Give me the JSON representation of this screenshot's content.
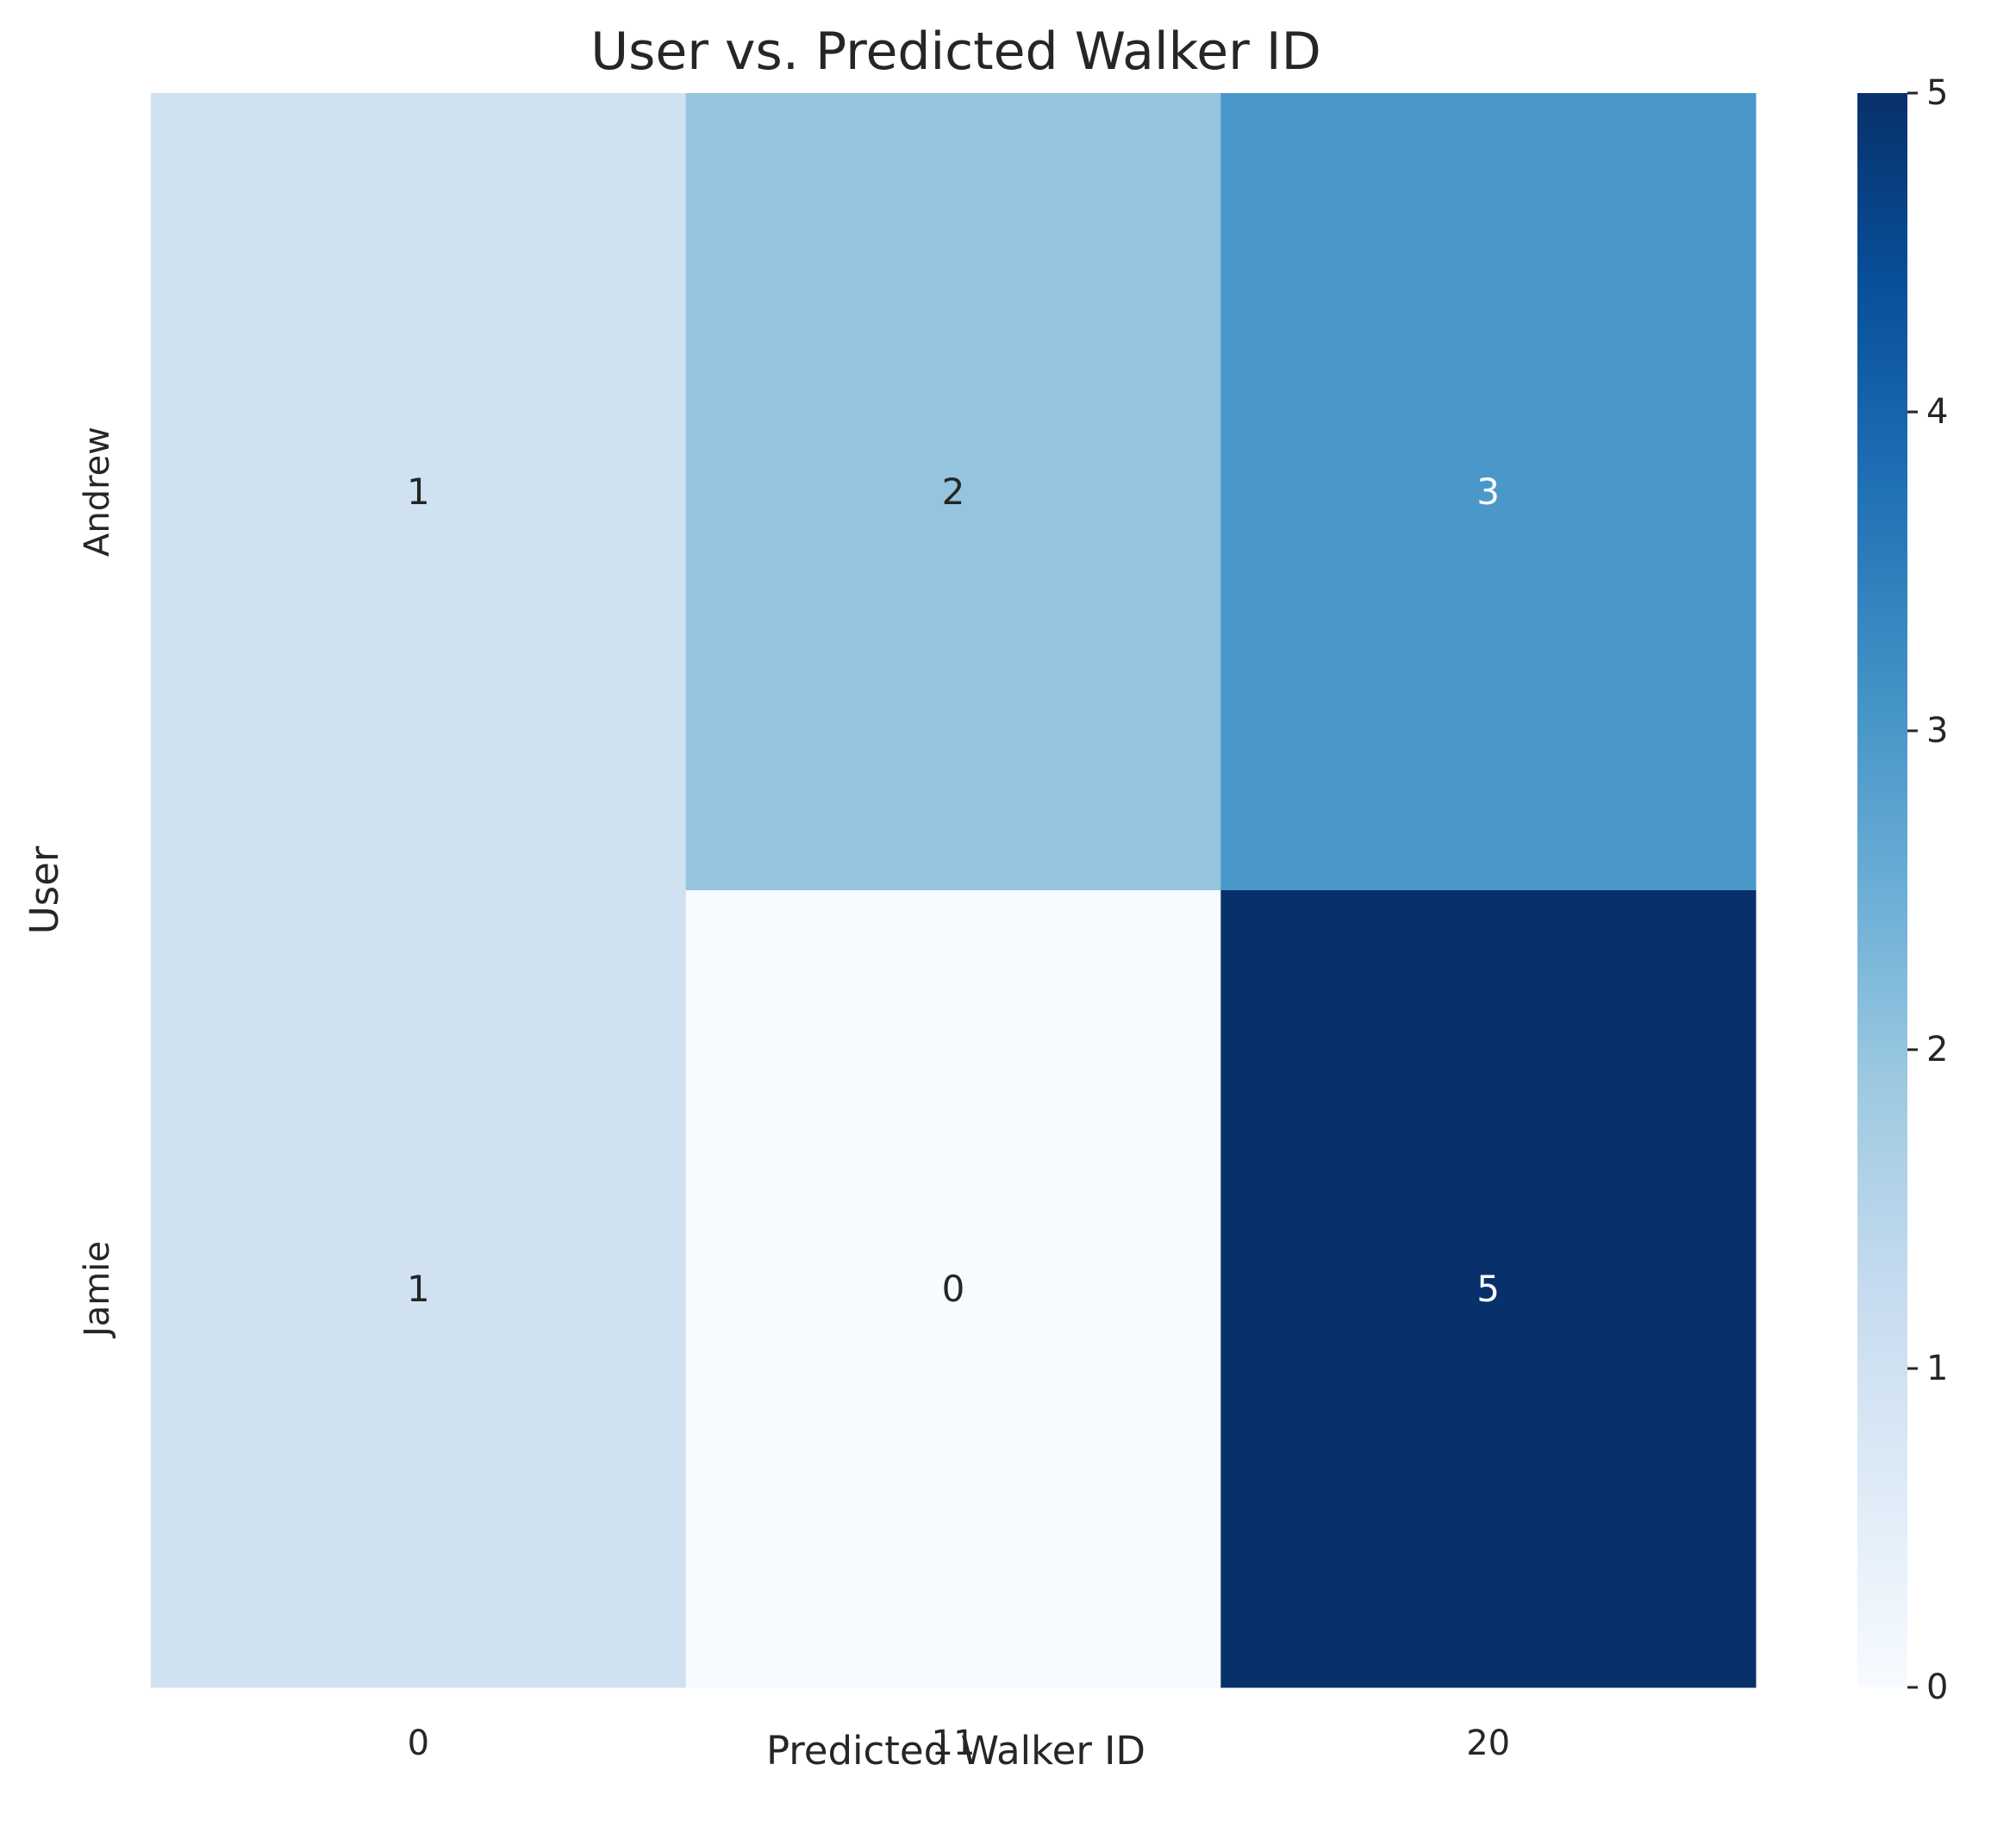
{
  "chart_data": {
    "type": "heatmap",
    "title": "User vs. Predicted Walker ID",
    "xlabel": "Predicted Walker ID",
    "ylabel": "User",
    "x_categories": [
      "0",
      "11",
      "20"
    ],
    "y_categories": [
      "Andrew",
      "Jamie"
    ],
    "values": [
      [
        1,
        2,
        3
      ],
      [
        1,
        0,
        5
      ]
    ],
    "colormap": "Blues",
    "colorbar": {
      "range": [
        0,
        5
      ],
      "ticks": [
        0,
        1,
        2,
        3,
        4,
        5
      ]
    },
    "grid": false,
    "annotations": true
  }
}
